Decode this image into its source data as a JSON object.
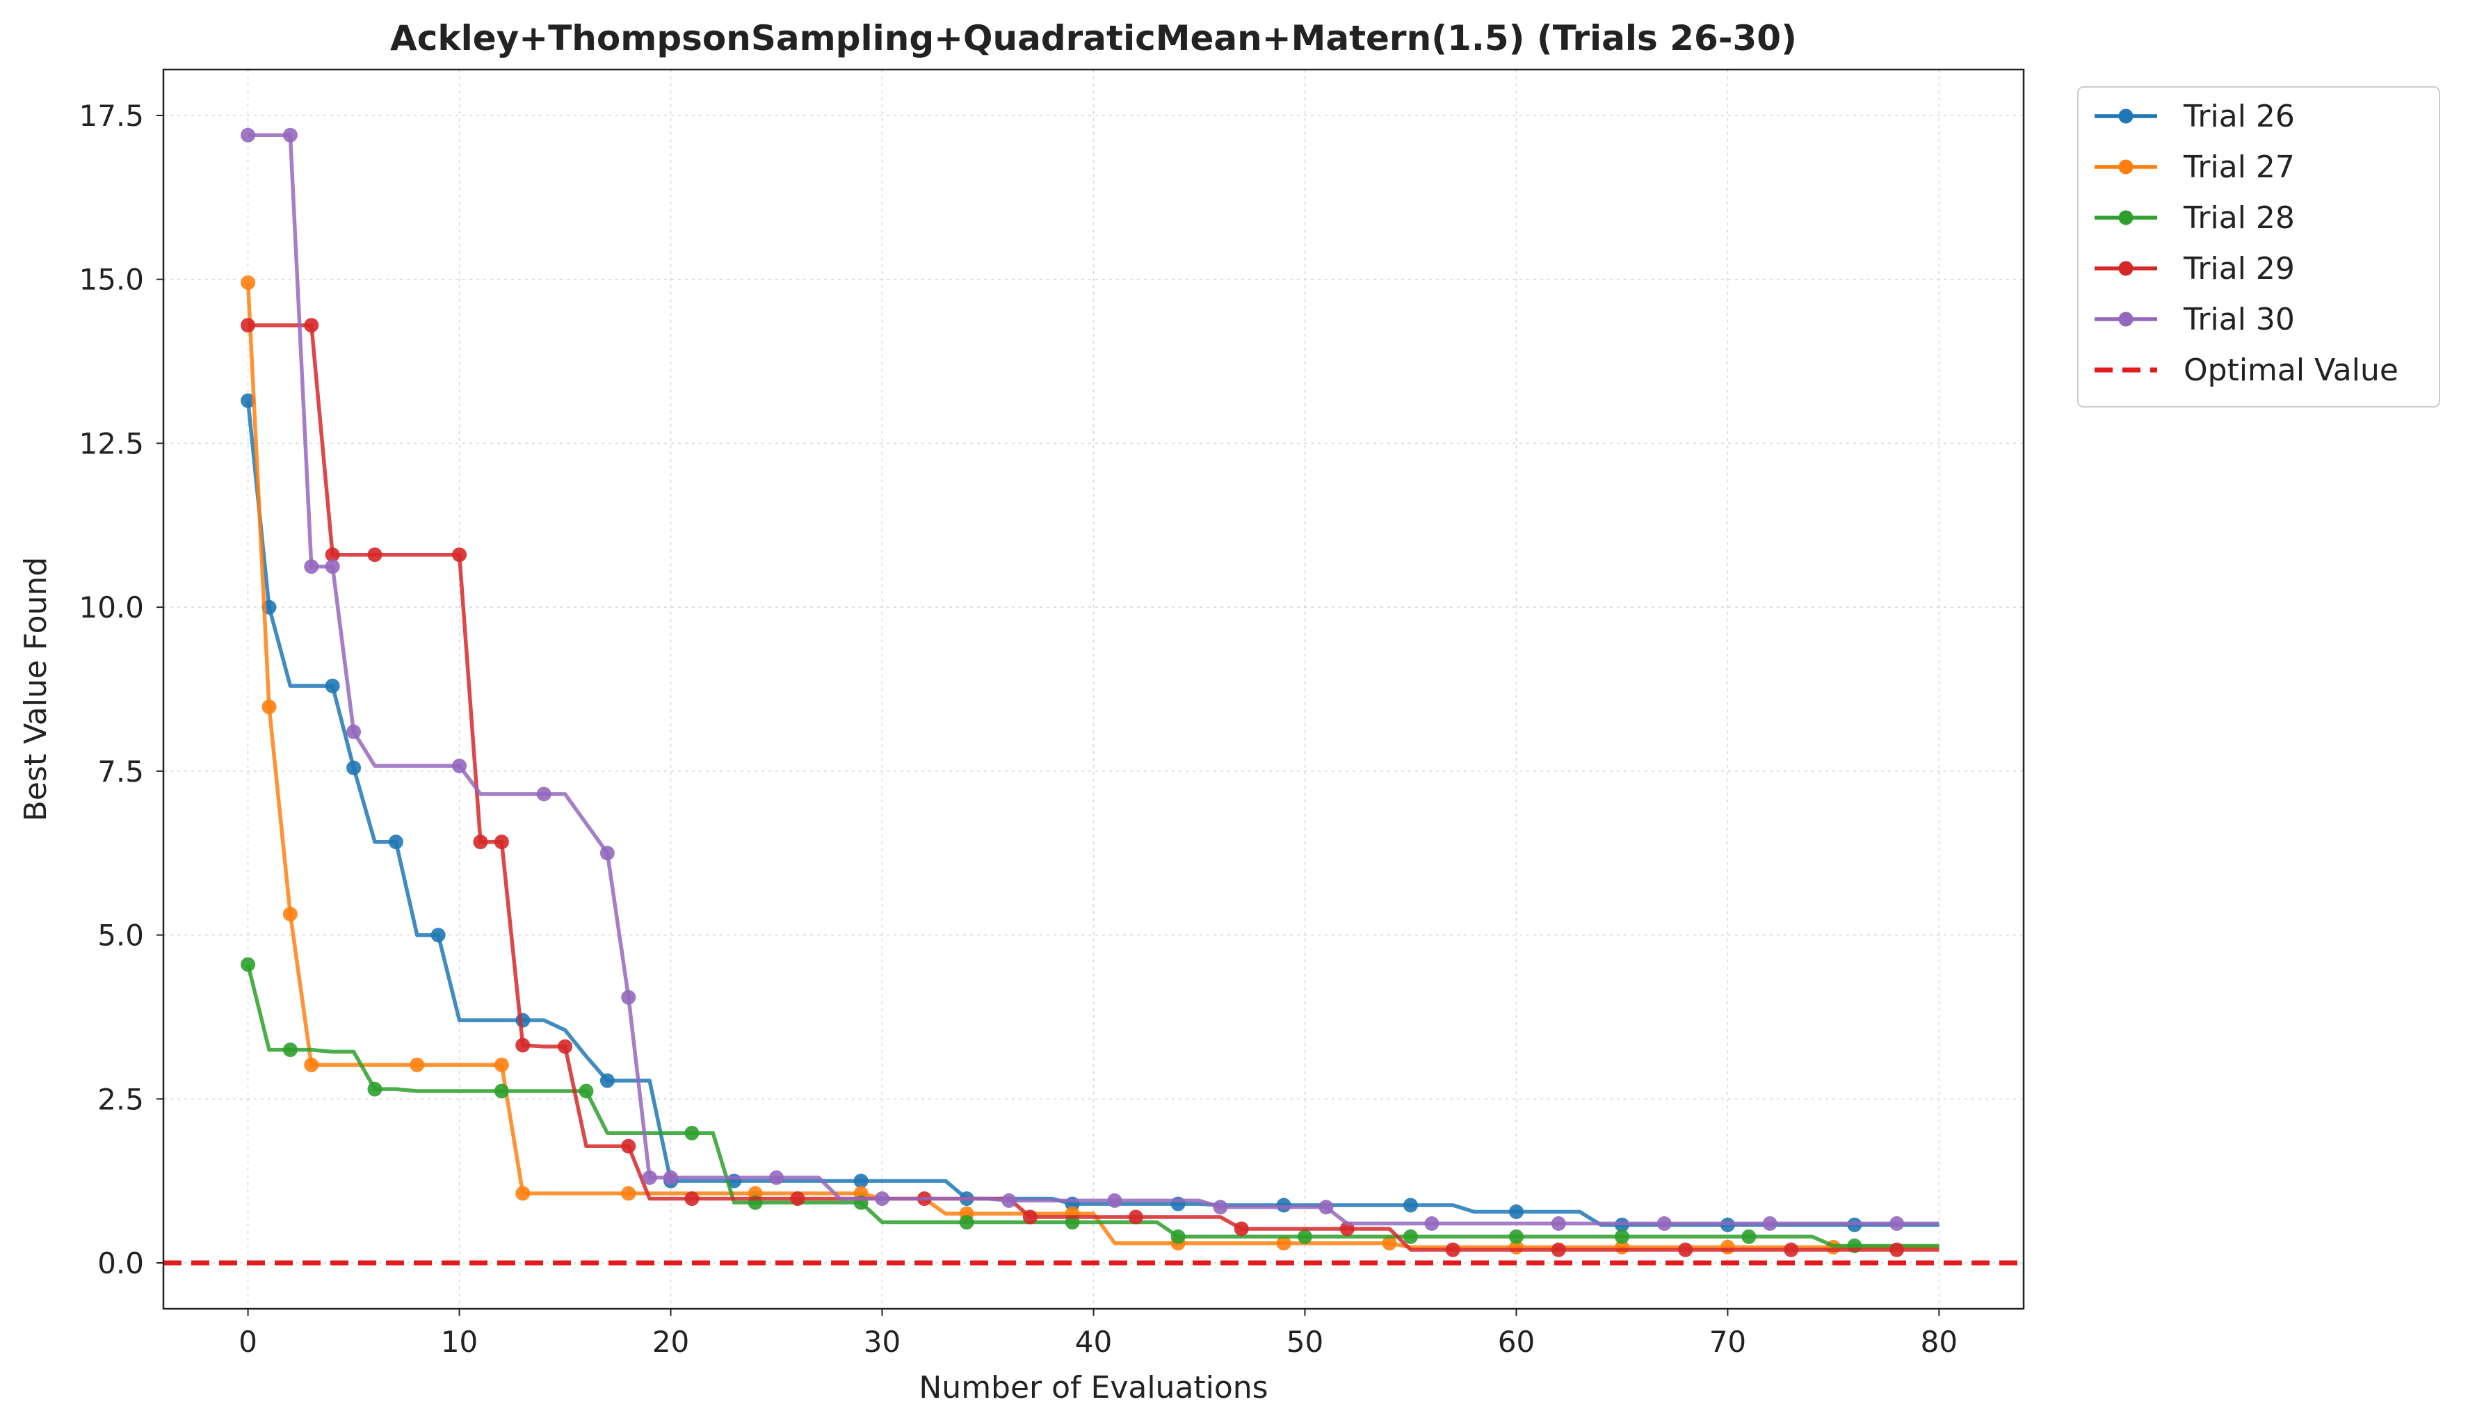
{
  "chart_data": {
    "type": "line",
    "title": "Ackley+ThompsonSampling+QuadraticMean+Matern(1.5) (Trials 26-30)",
    "xlabel": "Number of Evaluations",
    "ylabel": "Best Value Found",
    "xlim": [
      -4,
      84
    ],
    "ylim": [
      -0.7,
      18.2
    ],
    "xticks": [
      0,
      10,
      20,
      30,
      40,
      50,
      60,
      70,
      80
    ],
    "yticks": [
      0.0,
      2.5,
      5.0,
      7.5,
      10.0,
      12.5,
      15.0,
      17.5
    ],
    "xtick_labels": [
      "0",
      "10",
      "20",
      "30",
      "40",
      "50",
      "60",
      "70",
      "80"
    ],
    "ytick_labels": [
      "0.0",
      "2.5",
      "5.0",
      "7.5",
      "10.0",
      "12.5",
      "15.0",
      "17.5"
    ],
    "grid": true,
    "legend_position": "outside top-right",
    "series": [
      {
        "name": "Trial 26",
        "color": "#1f77b4",
        "x": [
          0,
          1,
          2,
          3,
          4,
          5,
          6,
          7,
          8,
          9,
          10,
          11,
          12,
          13,
          14,
          15,
          16,
          17,
          18,
          19,
          20,
          21,
          22,
          23,
          24,
          25,
          26,
          27,
          28,
          29,
          30,
          31,
          32,
          33,
          34,
          35,
          36,
          37,
          38,
          39,
          40,
          41,
          42,
          43,
          44,
          45,
          46,
          47,
          48,
          49,
          50,
          51,
          52,
          53,
          54,
          55,
          56,
          57,
          58,
          59,
          60,
          61,
          62,
          63,
          64,
          65,
          66,
          67,
          68,
          69,
          70,
          71,
          72,
          73,
          74,
          75,
          76,
          77,
          78,
          79,
          80
        ],
        "y": [
          13.15,
          10.0,
          8.8,
          8.8,
          8.8,
          7.55,
          6.42,
          6.42,
          5.0,
          5.0,
          3.7,
          3.7,
          3.7,
          3.7,
          3.7,
          3.55,
          3.15,
          2.78,
          2.78,
          2.78,
          1.25,
          1.25,
          1.25,
          1.25,
          1.25,
          1.25,
          1.25,
          1.25,
          1.25,
          1.25,
          1.25,
          1.25,
          1.25,
          1.25,
          0.98,
          0.98,
          0.98,
          0.98,
          0.98,
          0.9,
          0.9,
          0.9,
          0.9,
          0.9,
          0.9,
          0.9,
          0.88,
          0.88,
          0.88,
          0.88,
          0.88,
          0.88,
          0.88,
          0.88,
          0.88,
          0.88,
          0.88,
          0.88,
          0.78,
          0.78,
          0.78,
          0.78,
          0.78,
          0.78,
          0.58,
          0.58,
          0.58,
          0.58,
          0.58,
          0.58,
          0.58,
          0.58,
          0.58,
          0.58,
          0.58,
          0.58,
          0.58,
          0.58,
          0.58,
          0.58,
          0.58
        ],
        "markers": [
          0,
          1,
          4,
          5,
          7,
          9,
          13,
          17,
          20,
          23,
          29,
          34,
          39,
          44,
          49,
          55,
          60,
          65,
          70,
          76
        ]
      },
      {
        "name": "Trial 27",
        "color": "#ff7f0e",
        "x": [
          0,
          1,
          2,
          3,
          4,
          5,
          6,
          7,
          8,
          9,
          10,
          11,
          12,
          13,
          14,
          15,
          16,
          17,
          18,
          19,
          20,
          21,
          22,
          23,
          24,
          25,
          26,
          27,
          28,
          29,
          30,
          31,
          32,
          33,
          34,
          35,
          36,
          37,
          38,
          39,
          40,
          41,
          42,
          43,
          44,
          45,
          46,
          47,
          48,
          49,
          50,
          51,
          52,
          53,
          54,
          55,
          56,
          57,
          58,
          59,
          60,
          61,
          62,
          63,
          64,
          65,
          66,
          67,
          68,
          69,
          70,
          71,
          72,
          73,
          74,
          75,
          76,
          77,
          78,
          79,
          80
        ],
        "y": [
          14.95,
          8.48,
          5.32,
          3.02,
          3.02,
          3.02,
          3.02,
          3.02,
          3.02,
          3.02,
          3.02,
          3.02,
          3.02,
          1.06,
          1.06,
          1.06,
          1.06,
          1.06,
          1.06,
          1.06,
          1.06,
          1.06,
          1.06,
          1.06,
          1.06,
          1.06,
          1.06,
          1.06,
          1.06,
          1.06,
          0.98,
          0.98,
          0.98,
          0.75,
          0.75,
          0.75,
          0.75,
          0.75,
          0.75,
          0.75,
          0.75,
          0.3,
          0.3,
          0.3,
          0.3,
          0.3,
          0.3,
          0.3,
          0.3,
          0.3,
          0.3,
          0.3,
          0.3,
          0.3,
          0.3,
          0.24,
          0.24,
          0.24,
          0.24,
          0.24,
          0.24,
          0.24,
          0.24,
          0.24,
          0.24,
          0.24,
          0.24,
          0.24,
          0.24,
          0.24,
          0.24,
          0.24,
          0.24,
          0.24,
          0.24,
          0.24,
          0.24,
          0.24,
          0.24,
          0.24,
          0.24
        ],
        "markers": [
          0,
          1,
          2,
          3,
          8,
          12,
          13,
          18,
          24,
          29,
          34,
          39,
          44,
          49,
          54,
          60,
          65,
          70,
          75
        ]
      },
      {
        "name": "Trial 28",
        "color": "#2ca02c",
        "x": [
          0,
          1,
          2,
          3,
          4,
          5,
          6,
          7,
          8,
          9,
          10,
          11,
          12,
          13,
          14,
          15,
          16,
          17,
          18,
          19,
          20,
          21,
          22,
          23,
          24,
          25,
          26,
          27,
          28,
          29,
          30,
          31,
          32,
          33,
          34,
          35,
          36,
          37,
          38,
          39,
          40,
          41,
          42,
          43,
          44,
          45,
          46,
          47,
          48,
          49,
          50,
          51,
          52,
          53,
          54,
          55,
          56,
          57,
          58,
          59,
          60,
          61,
          62,
          63,
          64,
          65,
          66,
          67,
          68,
          69,
          70,
          71,
          72,
          73,
          74,
          75,
          76,
          77,
          78,
          79,
          80
        ],
        "y": [
          4.55,
          3.25,
          3.25,
          3.25,
          3.22,
          3.22,
          2.65,
          2.65,
          2.62,
          2.62,
          2.62,
          2.62,
          2.62,
          2.62,
          2.62,
          2.62,
          2.62,
          1.98,
          1.98,
          1.98,
          1.98,
          1.98,
          1.98,
          0.92,
          0.92,
          0.92,
          0.92,
          0.92,
          0.92,
          0.92,
          0.62,
          0.62,
          0.62,
          0.62,
          0.62,
          0.62,
          0.62,
          0.62,
          0.62,
          0.62,
          0.62,
          0.62,
          0.62,
          0.62,
          0.4,
          0.4,
          0.4,
          0.4,
          0.4,
          0.4,
          0.4,
          0.4,
          0.4,
          0.4,
          0.4,
          0.4,
          0.4,
          0.4,
          0.4,
          0.4,
          0.4,
          0.4,
          0.4,
          0.4,
          0.4,
          0.4,
          0.4,
          0.4,
          0.4,
          0.4,
          0.4,
          0.4,
          0.4,
          0.4,
          0.4,
          0.26,
          0.26,
          0.26,
          0.26,
          0.26,
          0.26
        ],
        "markers": [
          0,
          2,
          6,
          12,
          16,
          21,
          24,
          29,
          34,
          39,
          44,
          50,
          55,
          60,
          65,
          71,
          76
        ]
      },
      {
        "name": "Trial 29",
        "color": "#d62728",
        "x": [
          0,
          1,
          2,
          3,
          4,
          5,
          6,
          7,
          8,
          9,
          10,
          11,
          12,
          13,
          14,
          15,
          16,
          17,
          18,
          19,
          20,
          21,
          22,
          23,
          24,
          25,
          26,
          27,
          28,
          29,
          30,
          31,
          32,
          33,
          34,
          35,
          36,
          37,
          38,
          39,
          40,
          41,
          42,
          43,
          44,
          45,
          46,
          47,
          48,
          49,
          50,
          51,
          52,
          53,
          54,
          55,
          56,
          57,
          58,
          59,
          60,
          61,
          62,
          63,
          64,
          65,
          66,
          67,
          68,
          69,
          70,
          71,
          72,
          73,
          74,
          75,
          76,
          77,
          78,
          79,
          80
        ],
        "y": [
          14.3,
          14.3,
          14.3,
          14.3,
          10.8,
          10.8,
          10.8,
          10.8,
          10.8,
          10.8,
          10.8,
          6.42,
          6.42,
          3.32,
          3.3,
          3.3,
          1.78,
          1.78,
          1.78,
          0.98,
          0.98,
          0.98,
          0.98,
          0.98,
          0.98,
          0.98,
          0.98,
          0.98,
          0.98,
          0.98,
          0.98,
          0.98,
          0.98,
          0.98,
          0.98,
          0.98,
          0.98,
          0.7,
          0.7,
          0.7,
          0.7,
          0.7,
          0.7,
          0.7,
          0.7,
          0.7,
          0.7,
          0.52,
          0.52,
          0.52,
          0.52,
          0.52,
          0.52,
          0.52,
          0.52,
          0.2,
          0.2,
          0.2,
          0.2,
          0.2,
          0.2,
          0.2,
          0.2,
          0.2,
          0.2,
          0.2,
          0.2,
          0.2,
          0.2,
          0.2,
          0.2,
          0.2,
          0.2,
          0.2,
          0.2,
          0.2,
          0.2,
          0.2,
          0.2,
          0.2,
          0.2
        ],
        "markers": [
          0,
          3,
          4,
          6,
          10,
          11,
          12,
          13,
          15,
          18,
          21,
          26,
          32,
          37,
          42,
          47,
          52,
          57,
          62,
          68,
          73,
          78
        ]
      },
      {
        "name": "Trial 30",
        "color": "#9467bd",
        "x": [
          0,
          1,
          2,
          3,
          4,
          5,
          6,
          7,
          8,
          9,
          10,
          11,
          12,
          13,
          14,
          15,
          16,
          17,
          18,
          19,
          20,
          21,
          22,
          23,
          24,
          25,
          26,
          27,
          28,
          29,
          30,
          31,
          32,
          33,
          34,
          35,
          36,
          37,
          38,
          39,
          40,
          41,
          42,
          43,
          44,
          45,
          46,
          47,
          48,
          49,
          50,
          51,
          52,
          53,
          54,
          55,
          56,
          57,
          58,
          59,
          60,
          61,
          62,
          63,
          64,
          65,
          66,
          67,
          68,
          69,
          70,
          71,
          72,
          73,
          74,
          75,
          76,
          77,
          78,
          79,
          80
        ],
        "y": [
          17.2,
          17.2,
          17.2,
          10.62,
          10.62,
          8.1,
          7.58,
          7.58,
          7.58,
          7.58,
          7.58,
          7.15,
          7.15,
          7.15,
          7.15,
          7.15,
          6.7,
          6.25,
          4.05,
          1.3,
          1.3,
          1.3,
          1.3,
          1.3,
          1.3,
          1.3,
          1.3,
          1.3,
          0.98,
          0.98,
          0.98,
          0.98,
          0.98,
          0.98,
          0.98,
          0.98,
          0.95,
          0.95,
          0.95,
          0.95,
          0.95,
          0.95,
          0.95,
          0.95,
          0.95,
          0.95,
          0.85,
          0.85,
          0.85,
          0.85,
          0.85,
          0.85,
          0.6,
          0.6,
          0.6,
          0.6,
          0.6,
          0.6,
          0.6,
          0.6,
          0.6,
          0.6,
          0.6,
          0.6,
          0.6,
          0.6,
          0.6,
          0.6,
          0.6,
          0.6,
          0.6,
          0.6,
          0.6,
          0.6,
          0.6,
          0.6,
          0.6,
          0.6,
          0.6,
          0.6,
          0.6
        ],
        "markers": [
          0,
          2,
          3,
          4,
          5,
          10,
          14,
          17,
          18,
          19,
          20,
          25,
          30,
          36,
          41,
          46,
          51,
          56,
          62,
          67,
          72,
          78
        ]
      },
      {
        "name": "Optimal Value",
        "color": "#e31a1c",
        "style": "dashed",
        "y_constant": 0.0
      }
    ]
  }
}
